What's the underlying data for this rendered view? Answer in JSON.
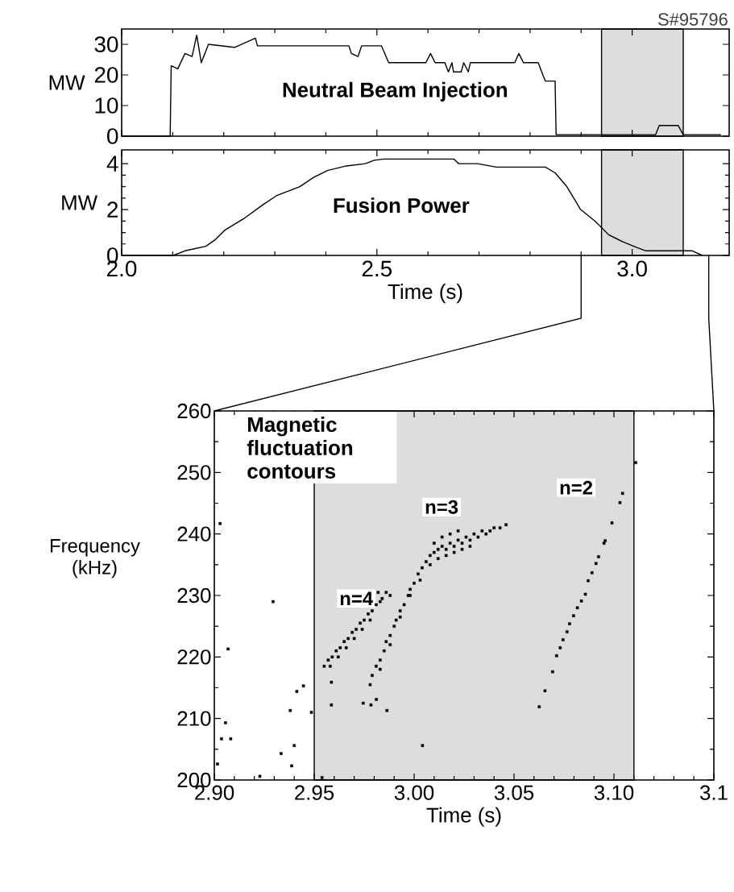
{
  "chart_data": [
    {
      "type": "line",
      "title": "Neutral Beam Injection",
      "ylabel": "MW",
      "annotations": [
        "S#95796"
      ],
      "xlim": [
        2.0,
        3.19
      ],
      "ylim": [
        0,
        35
      ],
      "xticks": [
        {
          "value": 2.0,
          "label": null
        },
        {
          "value": 2.5,
          "label": null
        },
        {
          "value": 3.0,
          "label": null
        }
      ],
      "yticks": [
        0,
        10,
        20,
        30
      ],
      "tick_labels": "y",
      "bands": [
        {
          "axis": "x",
          "from": 2.94,
          "to": 3.1,
          "color": "#dddddd"
        }
      ],
      "series": [
        {
          "color": "#000000",
          "x": [
            2.0,
            2.095,
            2.097,
            2.11,
            2.124,
            2.138,
            2.147,
            2.156,
            2.17,
            2.221,
            2.262,
            2.266,
            2.445,
            2.45,
            2.463,
            2.47,
            2.509,
            2.523,
            2.596,
            2.605,
            2.614,
            2.633,
            2.64,
            2.647,
            2.65,
            2.665,
            2.67,
            2.679,
            2.683,
            2.77,
            2.778,
            2.787,
            2.816,
            2.825,
            2.83,
            2.849,
            2.851,
            3.046,
            3.053,
            3.09,
            3.1,
            3.174
          ],
          "values": [
            0,
            0,
            23,
            22,
            27,
            26,
            33,
            24,
            30,
            29,
            32,
            29.5,
            29.5,
            27,
            26,
            29.5,
            29.5,
            24,
            24,
            27,
            24,
            24,
            21,
            24,
            21,
            21,
            24,
            21,
            24,
            24,
            27,
            24,
            24,
            20,
            18,
            18,
            0.5,
            0.5,
            3.5,
            3.5,
            0.5,
            0.5
          ]
        }
      ]
    },
    {
      "type": "line",
      "title": "Fusion Power",
      "ylabel": "MW",
      "xlabel": "Time (s)",
      "xlim": [
        2.0,
        3.19
      ],
      "ylim": [
        0,
        4.6
      ],
      "xticks": [
        {
          "value": 2.0,
          "label": "2.0"
        },
        {
          "value": 2.5,
          "label": "2.5"
        },
        {
          "value": 3.0,
          "label": "3.0"
        }
      ],
      "yticks": [
        0,
        2,
        4
      ],
      "bands": [
        {
          "axis": "x",
          "from": 2.94,
          "to": 3.1,
          "color": "#dddddd"
        }
      ],
      "series": [
        {
          "color": "#000000",
          "x": [
            2.0,
            2.101,
            2.124,
            2.165,
            2.184,
            2.202,
            2.239,
            2.276,
            2.303,
            2.349,
            2.376,
            2.403,
            2.44,
            2.477,
            2.495,
            2.514,
            2.651,
            2.66,
            2.697,
            2.734,
            2.83,
            2.849,
            2.872,
            2.899,
            2.927,
            2.954,
            2.981,
            3.009,
            3.027,
            3.091,
            3.118,
            3.137
          ],
          "values": [
            0,
            0,
            0.2,
            0.4,
            0.7,
            1.1,
            1.6,
            2.2,
            2.6,
            3.0,
            3.4,
            3.7,
            3.9,
            4.0,
            4.15,
            4.2,
            4.2,
            4.0,
            4.0,
            3.85,
            3.85,
            3.6,
            3.0,
            2.0,
            1.5,
            0.9,
            0.6,
            0.35,
            0.2,
            0.2,
            0.2,
            0.0
          ]
        }
      ]
    },
    {
      "type": "scatter",
      "title": "Magnetic fluctuation contours",
      "xlabel": "Time (s)",
      "ylabel": "Frequency (kHz)",
      "marker": "square",
      "xlim": [
        2.9,
        3.15
      ],
      "ylim": [
        200,
        260
      ],
      "xticks": [
        {
          "value": 2.9,
          "label": "2.90"
        },
        {
          "value": 2.95,
          "label": "2.95"
        },
        {
          "value": 3.0,
          "label": "3.00"
        },
        {
          "value": 3.05,
          "label": "3.05"
        },
        {
          "value": 3.1,
          "label": "3.10"
        },
        {
          "value": 3.15,
          "label": "3.1"
        }
      ],
      "yticks": [
        200,
        210,
        220,
        230,
        240,
        250,
        260
      ],
      "bands": [
        {
          "axis": "x",
          "from": 2.95,
          "to": 3.11,
          "color": "#dddddd"
        }
      ],
      "series": [
        {
          "name": "n=4",
          "color": "#000000",
          "x": [
            2.955,
            2.958,
            2.957,
            2.959,
            2.962,
            2.961,
            2.963,
            2.966,
            2.965,
            2.967,
            2.97,
            2.969,
            2.971,
            2.974,
            2.973,
            2.975,
            2.978,
            2.977,
            2.979,
            2.981,
            2.983,
            2.988,
            2.986,
            2.982,
            2.984
          ],
          "values": [
            218.5,
            218.5,
            219.5,
            220,
            220,
            221,
            221.5,
            221.5,
            222.5,
            223,
            223,
            224,
            224.5,
            224.5,
            225.5,
            226,
            226,
            227,
            227.5,
            228.5,
            229,
            230,
            230.5,
            230.5,
            229.5
          ]
        },
        {
          "name": "n=3",
          "color": "#000000",
          "x": [
            2.978,
            2.979,
            2.981,
            2.983,
            2.983,
            2.985,
            2.986,
            2.988,
            2.988,
            2.99,
            2.991,
            2.993,
            2.993,
            2.995,
            2.997,
            2.998,
            2.998,
            3.0,
            3.002,
            3.003,
            3.004,
            3.006,
            3.008,
            3.008,
            3.01,
            3.01,
            3.012,
            3.012,
            3.014,
            3.014,
            3.016,
            3.016,
            3.018,
            3.018,
            3.02,
            3.02,
            3.022,
            3.022,
            3.024,
            3.024,
            3.026,
            3.028,
            3.028,
            3.03,
            3.032,
            3.034,
            3.036,
            3.038,
            3.04,
            3.043,
            3.046
          ],
          "values": [
            215.5,
            217,
            218.5,
            219.5,
            218,
            221,
            222.5,
            223.5,
            222,
            225,
            226,
            227.5,
            226.5,
            228.5,
            230,
            231,
            230,
            232,
            233.5,
            232.5,
            234.5,
            235.5,
            236.5,
            235,
            237,
            238.5,
            237.5,
            236,
            238,
            239.5,
            237.5,
            236.5,
            238.5,
            240,
            238,
            237,
            239,
            240.5,
            238.5,
            237.5,
            239.5,
            239,
            238,
            240,
            239.5,
            240.5,
            240,
            240.5,
            241,
            241,
            241.5
          ]
        },
        {
          "name": "n=2",
          "color": "#000000",
          "x": [
            3.0626,
            3.0655,
            3.0693,
            3.0713,
            3.0731,
            3.0745,
            3.0765,
            3.0778,
            3.0798,
            3.0817,
            3.0837,
            3.0857,
            3.0871,
            3.089,
            3.091,
            3.0923,
            3.095,
            3.0956,
            3.099,
            3.103,
            3.1043,
            3.1109
          ],
          "values": [
            211.9,
            214.5,
            217.6,
            220.2,
            221.5,
            222.8,
            224.1,
            225.4,
            226.7,
            228.0,
            229.1,
            230.2,
            232.4,
            233.7,
            235.2,
            236.3,
            238.5,
            238.9,
            241.8,
            245.1,
            246.6,
            251.6
          ]
        },
        {
          "color": "#000000",
          "x": [
            2.9029,
            2.9294,
            2.9069,
            2.9056,
            2.9036,
            2.9082,
            2.9016,
            2.9228,
            2.94,
            2.9334,
            2.9387,
            2.9413,
            2.9446,
            2.938,
            2.9486,
            2.9586,
            2.9586,
            2.9745,
            2.9784,
            2.9811,
            2.9864,
            3.0042,
            2.9539
          ],
          "values": [
            241.7,
            229.0,
            221.3,
            209.3,
            206.7,
            206.7,
            202.6,
            200.6,
            205.6,
            204.3,
            202.3,
            214.4,
            215.3,
            211.3,
            211.0,
            212.2,
            215.9,
            212.5,
            212.2,
            213.1,
            211.3,
            205.6,
            200.4
          ]
        }
      ]
    }
  ]
}
